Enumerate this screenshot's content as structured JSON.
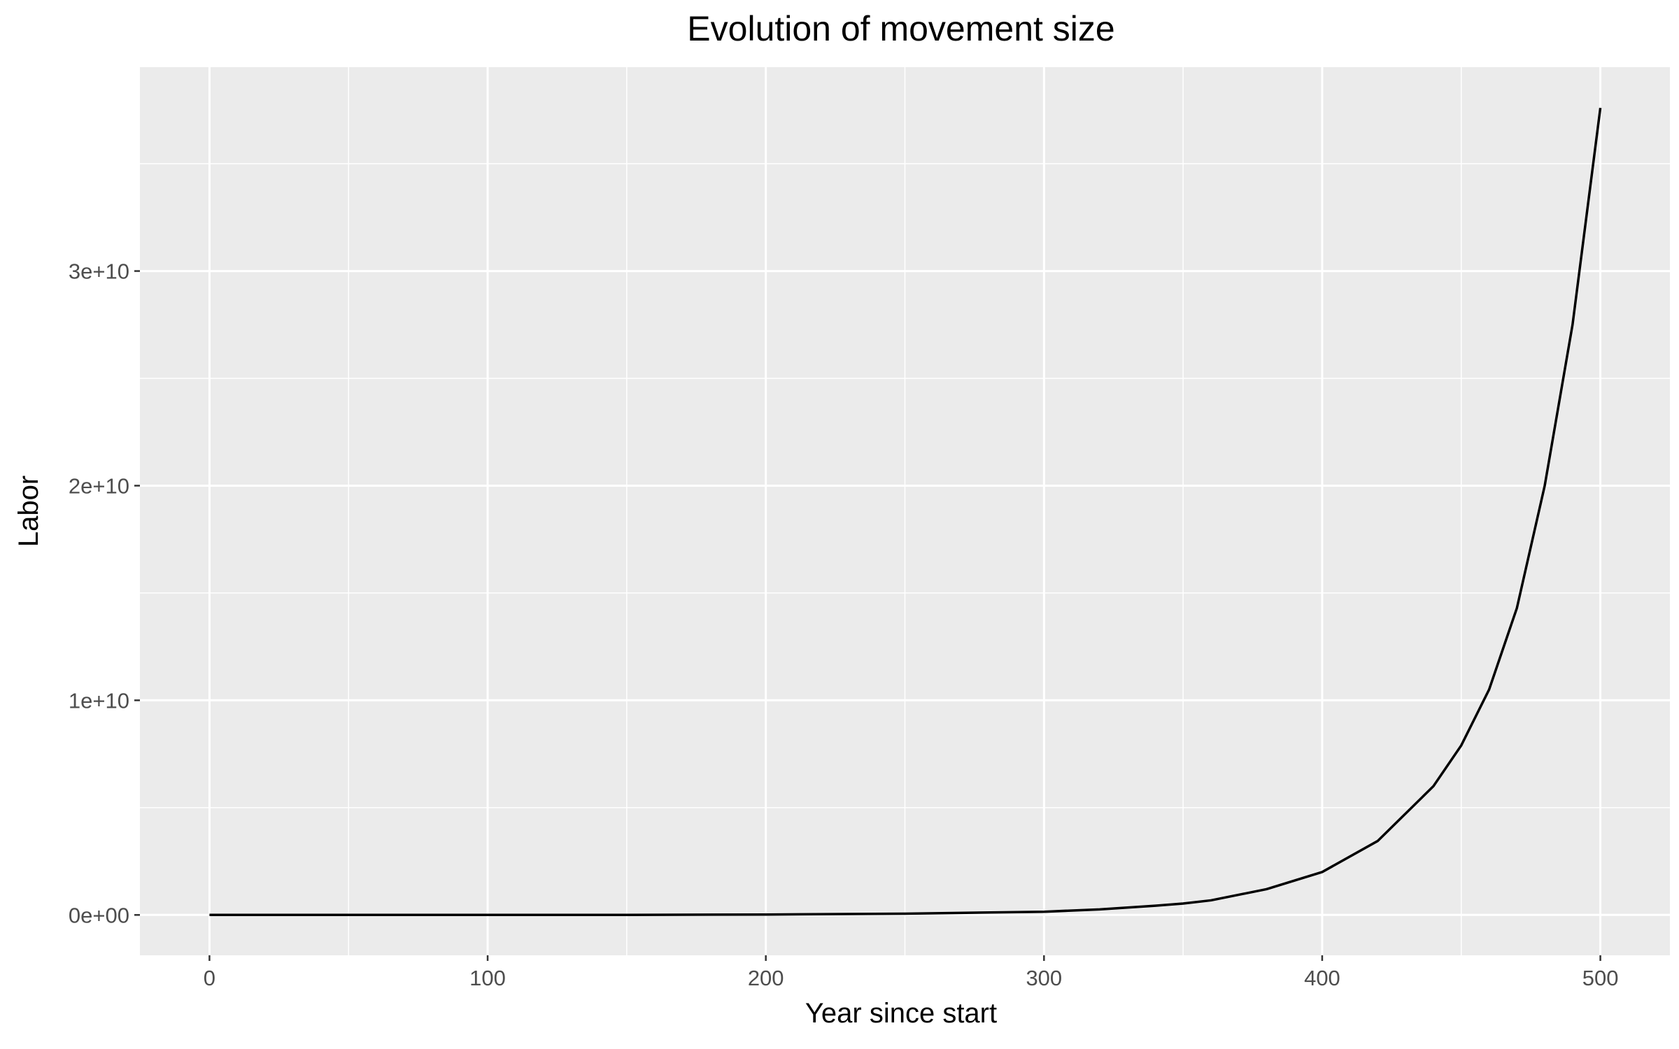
{
  "chart_data": {
    "type": "line",
    "title": "Evolution of movement size",
    "xlabel": "Year since start",
    "ylabel": "Labor",
    "xlim": [
      -25,
      525
    ],
    "ylim": [
      -1880000000,
      39500000000
    ],
    "x_ticks": [
      0,
      100,
      200,
      300,
      400,
      500
    ],
    "x_tick_labels": [
      "0",
      "100",
      "200",
      "300",
      "400",
      "500"
    ],
    "y_ticks": [
      0,
      10000000000,
      20000000000,
      30000000000
    ],
    "y_tick_labels": [
      "0e+00",
      "1e+10",
      "2e+10",
      "3e+10"
    ],
    "grid": true,
    "legend": "none",
    "colors": {
      "panel_background": "#ebebeb",
      "gridline": "#ffffff",
      "line": "#000000",
      "tick_label": "#4d4d4d",
      "tick_mark": "#333333"
    },
    "series": [
      {
        "x": [
          0,
          50,
          100,
          150,
          200,
          250,
          300,
          320,
          340,
          350,
          360,
          380,
          400,
          420,
          440,
          450,
          460,
          470,
          480,
          490,
          500
        ],
        "values": [
          0,
          0,
          0,
          0,
          20000000,
          60000000,
          150000000,
          260000000,
          430000000,
          530000000,
          680000000,
          1200000000,
          2000000000,
          3450000000,
          6000000000,
          7900000000,
          10500000000,
          14300000000,
          20000000000,
          27500000000,
          37600000000
        ]
      }
    ]
  }
}
